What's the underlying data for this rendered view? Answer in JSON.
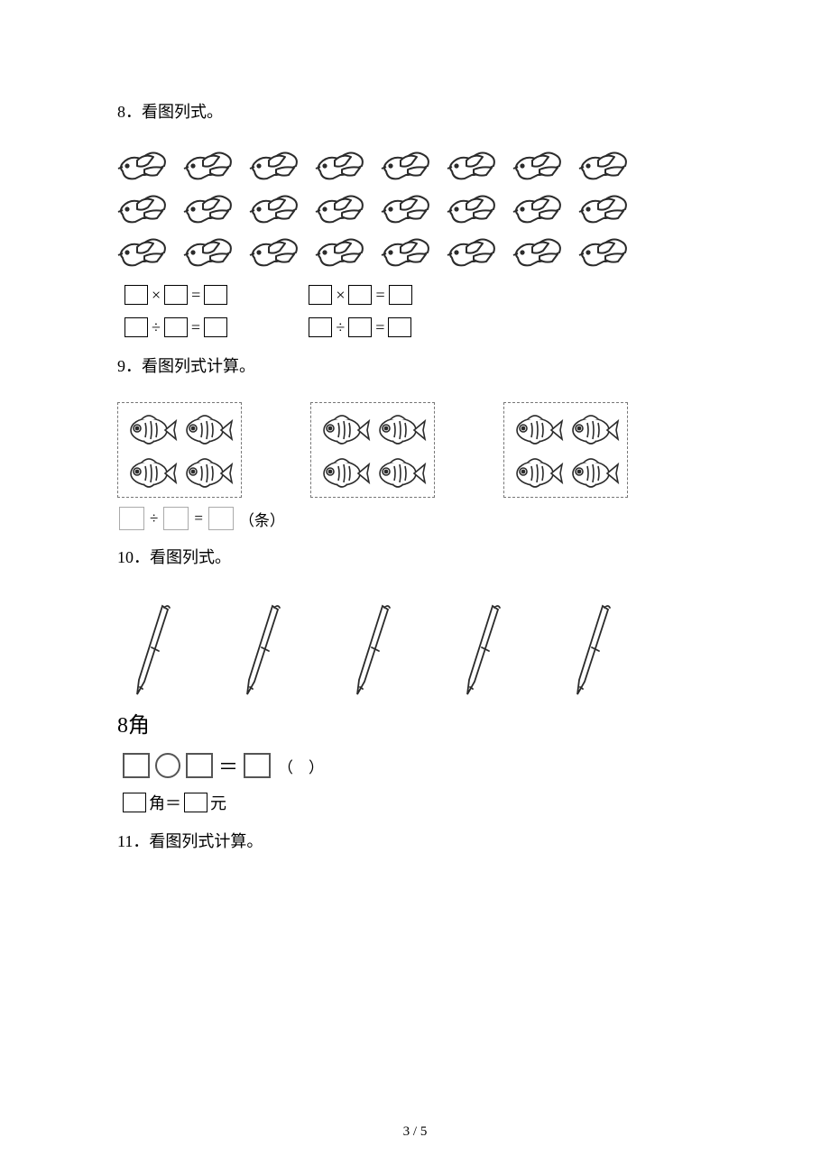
{
  "colors": {
    "page_bg": "#ffffff",
    "text": "#000000",
    "box_border": "#000000",
    "box_border_light": "#aaaaaa",
    "dash_border": "#777777",
    "shape_border": "#555555",
    "icon_stroke": "#2b2b2b",
    "icon_fill": "#ffffff"
  },
  "q8": {
    "title": "8．看图列式。",
    "birds": {
      "rows": 3,
      "cols": 8
    },
    "eq_left": {
      "mult_op": "×",
      "div_op": "÷",
      "eq_op": "="
    },
    "eq_right": {
      "mult_op": "×",
      "div_op": "÷",
      "eq_op": "="
    }
  },
  "q9": {
    "title": "9．看图列式计算。",
    "fish_groups": 3,
    "fish_per_group": 4,
    "eq": {
      "div_op": "÷",
      "eq_op": "=",
      "unit": "（条）"
    }
  },
  "q10": {
    "title": "10．看图列式。",
    "pens": 5,
    "price_label": "8角",
    "op_line": {
      "eq_op": "＝",
      "paren": "（　）"
    },
    "unit_line": {
      "jiao_label": "角＝",
      "yuan_label": "元"
    }
  },
  "q11": {
    "title": "11．看图列式计算。"
  },
  "page_number": "3 / 5"
}
